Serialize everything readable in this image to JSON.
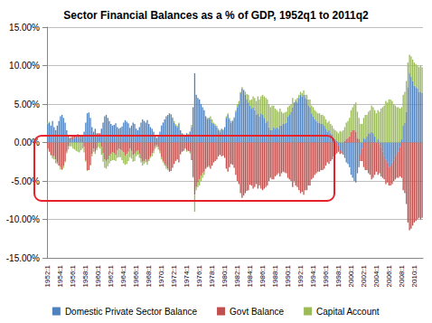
{
  "chart_data": {
    "type": "bar",
    "title": "Sector Financial Balances as a % of GDP, 1952q1 to 2011q2",
    "stacked": true,
    "grid": true,
    "legend": "bottom",
    "categories": [
      "1952:1",
      null,
      null,
      null,
      null,
      null,
      null,
      null,
      "1954:1",
      null,
      null,
      null,
      null,
      null,
      null,
      null,
      "1956:1",
      null,
      null,
      null,
      null,
      null,
      null,
      null,
      "1958:1",
      null,
      null,
      null,
      null,
      null,
      null,
      null,
      "1960:1",
      null,
      null,
      null,
      null,
      null,
      null,
      null,
      "1962:1",
      null,
      null,
      null,
      null,
      null,
      null,
      null,
      "1964:1",
      null,
      null,
      null,
      null,
      null,
      null,
      null,
      "1966:1",
      null,
      null,
      null,
      null,
      null,
      null,
      null,
      "1968:1",
      null,
      null,
      null,
      null,
      null,
      null,
      null,
      "1970:1",
      null,
      null,
      null,
      null,
      null,
      null,
      null,
      "1972:1",
      null,
      null,
      null,
      null,
      null,
      null,
      null,
      "1974:1",
      null,
      null,
      null,
      null,
      null,
      null,
      null,
      "1976:1",
      null,
      null,
      null,
      null,
      null,
      null,
      null,
      "1978:1",
      null,
      null,
      null,
      null,
      null,
      null,
      null,
      "1980:1",
      null,
      null,
      null,
      null,
      null,
      null,
      null,
      "1982:1",
      null,
      null,
      null,
      null,
      null,
      null,
      null,
      "1984:1",
      null,
      null,
      null,
      null,
      null,
      null,
      null,
      "1986:1",
      null,
      null,
      null,
      null,
      null,
      null,
      null,
      "1988:1",
      null,
      null,
      null,
      null,
      null,
      null,
      null,
      "1990:1",
      null,
      null,
      null,
      null,
      null,
      null,
      null,
      "1992:1",
      null,
      null,
      null,
      null,
      null,
      null,
      null,
      "1994:1",
      null,
      null,
      null,
      null,
      null,
      null,
      null,
      "1996:1",
      null,
      null,
      null,
      null,
      null,
      null,
      null,
      "1998:1",
      null,
      null,
      null,
      null,
      null,
      null,
      null,
      "2000:1",
      null,
      null,
      null,
      null,
      null,
      null,
      null,
      "2002:1",
      null,
      null,
      null,
      null,
      null,
      null,
      null,
      "2004:1",
      null,
      null,
      null,
      null,
      null,
      null,
      null,
      "2006:1",
      null,
      null,
      null,
      null,
      null,
      null,
      null,
      "2008:1",
      null,
      null,
      null,
      null,
      null,
      null,
      null,
      "2010:1",
      null,
      null,
      null,
      null,
      null
    ],
    "series": [
      {
        "name": "Domestic Private Sector Balance",
        "color": "#4F81BD",
        "values": [
          2.4,
          2.6,
          2.2,
          2.8,
          2.0,
          1.6,
          2.2,
          2.8,
          3.4,
          3.6,
          3.2,
          2.6,
          1.6,
          1.0,
          0.6,
          0.4,
          0.4,
          0.6,
          0.8,
          0.6,
          0.8,
          0.6,
          0.9,
          1.4,
          2.6,
          3.8,
          3.9,
          3.2,
          2.0,
          1.4,
          1.8,
          1.2,
          0.8,
          1.0,
          1.8,
          2.6,
          3.4,
          3.6,
          3.2,
          2.8,
          2.4,
          2.2,
          2.3,
          2.5,
          2.0,
          1.8,
          1.9,
          2.1,
          2.6,
          2.9,
          2.7,
          2.5,
          1.9,
          2.2,
          2.6,
          2.4,
          1.8,
          1.6,
          2.0,
          2.6,
          3.0,
          2.8,
          2.6,
          2.9,
          2.4,
          2.0,
          1.8,
          1.4,
          0.8,
          0.6,
          0.9,
          1.4,
          2.2,
          2.6,
          3.0,
          3.4,
          3.6,
          3.8,
          3.6,
          3.2,
          2.6,
          2.2,
          2.0,
          2.4,
          1.6,
          1.2,
          1.0,
          0.8,
          1.2,
          1.0,
          1.4,
          2.0,
          4.6,
          9.0,
          6.2,
          5.8,
          5.6,
          5.0,
          4.6,
          4.2,
          3.4,
          3.0,
          3.2,
          3.0,
          2.6,
          2.4,
          2.2,
          2.0,
          1.6,
          1.4,
          1.8,
          1.6,
          2.0,
          3.2,
          3.6,
          3.0,
          2.6,
          2.8,
          3.2,
          4.0,
          4.6,
          5.0,
          6.4,
          7.0,
          6.8,
          6.2,
          5.6,
          5.2,
          4.8,
          4.4,
          4.6,
          4.2,
          3.6,
          3.8,
          3.4,
          3.8,
          3.6,
          3.2,
          2.6,
          2.8,
          2.0,
          1.6,
          1.6,
          2.0,
          1.8,
          2.0,
          1.8,
          2.2,
          2.2,
          2.4,
          2.4,
          2.6,
          3.4,
          3.6,
          4.0,
          4.6,
          5.2,
          5.4,
          5.2,
          5.8,
          6.2,
          6.0,
          6.2,
          5.8,
          5.6,
          4.8,
          4.6,
          3.8,
          3.4,
          3.0,
          2.8,
          2.6,
          2.6,
          2.4,
          2.4,
          2.2,
          1.8,
          1.4,
          1.6,
          1.2,
          1.0,
          0.6,
          0.4,
          0.2,
          -0.4,
          -1.0,
          -1.2,
          -1.6,
          -2.0,
          -2.6,
          -2.8,
          -3.2,
          -4.2,
          -4.6,
          -5.0,
          -5.2,
          -4.0,
          -3.2,
          -1.6,
          -0.8,
          0.6,
          0.4,
          0.8,
          1.2,
          1.2,
          1.4,
          1.2,
          0.8,
          0.0,
          0.4,
          -0.2,
          -0.6,
          -1.2,
          -1.8,
          -2.2,
          -2.6,
          -3.2,
          -3.0,
          -2.6,
          -2.2,
          -1.8,
          -1.6,
          -1.2,
          -0.6,
          0.4,
          2.2,
          2.6,
          4.0,
          7.2,
          9.0,
          8.6,
          8.0,
          7.4,
          7.2,
          7.0,
          6.6,
          6.6,
          6.4
        ]
      },
      {
        "name": "Govt Balance",
        "color": "#C0504D",
        "values": [
          -0.8,
          -1.2,
          -1.6,
          -1.8,
          -1.8,
          -2.2,
          -2.6,
          -3.0,
          -3.2,
          -3.5,
          -3.0,
          -2.4,
          -1.2,
          -0.5,
          0.0,
          0.3,
          0.6,
          0.4,
          0.2,
          0.5,
          0.2,
          0.3,
          0.0,
          -0.6,
          -2.3,
          -3.6,
          -3.6,
          -2.9,
          -1.5,
          -0.8,
          -1.2,
          -0.8,
          0.4,
          0.2,
          -0.6,
          -1.4,
          -2.2,
          -2.4,
          -2.2,
          -1.7,
          -1.5,
          -1.3,
          -1.4,
          -1.6,
          -1.0,
          -0.8,
          -0.9,
          -1.1,
          -1.3,
          -1.7,
          -1.5,
          -1.2,
          -0.8,
          -1.1,
          -1.6,
          -1.5,
          -1.2,
          -1.0,
          -1.5,
          -2.1,
          -2.5,
          -2.4,
          -2.2,
          -2.5,
          -2.2,
          -1.8,
          -1.4,
          -1.1,
          -0.5,
          -0.3,
          -0.6,
          -1.1,
          -1.9,
          -2.4,
          -2.8,
          -3.1,
          -3.4,
          -3.8,
          -3.7,
          -3.3,
          -2.8,
          -2.4,
          -2.2,
          -2.6,
          -1.5,
          -1.2,
          -1.1,
          -0.8,
          -1.0,
          -1.1,
          -1.2,
          -2.3,
          -4.5,
          -6.8,
          -5.8,
          -5.2,
          -4.8,
          -4.3,
          -4.0,
          -3.8,
          -3.4,
          -3.2,
          -3.0,
          -3.4,
          -3.0,
          -2.6,
          -2.4,
          -2.2,
          -1.8,
          -1.6,
          -1.8,
          -1.7,
          -2.0,
          -3.4,
          -3.8,
          -3.2,
          -2.8,
          -2.9,
          -3.3,
          -4.2,
          -5.0,
          -5.4,
          -6.6,
          -7.2,
          -6.9,
          -6.6,
          -6.3,
          -6.2,
          -5.5,
          -5.6,
          -6.0,
          -5.8,
          -5.4,
          -6.0,
          -5.6,
          -6.0,
          -6.2,
          -6.0,
          -5.8,
          -5.6,
          -5.0,
          -4.6,
          -4.8,
          -4.8,
          -4.4,
          -4.2,
          -4.0,
          -4.4,
          -4.0,
          -3.8,
          -3.9,
          -4.0,
          -4.6,
          -4.8,
          -5.0,
          -5.8,
          -5.0,
          -5.6,
          -5.8,
          -6.2,
          -6.6,
          -6.4,
          -6.8,
          -6.2,
          -6.2,
          -5.6,
          -5.6,
          -4.8,
          -4.6,
          -4.2,
          -4.0,
          -3.8,
          -3.8,
          -3.6,
          -3.6,
          -3.4,
          -3.0,
          -2.6,
          -2.8,
          -2.4,
          -2.2,
          -1.8,
          -1.6,
          -1.4,
          -0.8,
          -0.5,
          -0.2,
          0.0,
          0.2,
          0.4,
          0.6,
          0.8,
          1.4,
          1.6,
          1.6,
          1.4,
          0.6,
          0.4,
          -0.8,
          -1.6,
          -3.2,
          -3.6,
          -3.6,
          -4.0,
          -4.2,
          -4.8,
          -4.6,
          -4.2,
          -3.8,
          -4.2,
          -3.8,
          -3.8,
          -3.4,
          -3.0,
          -3.2,
          -2.6,
          -2.4,
          -2.6,
          -2.8,
          -2.8,
          -3.0,
          -3.0,
          -3.4,
          -3.8,
          -4.6,
          -6.2,
          -6.6,
          -8.0,
          -10.4,
          -11.4,
          -11.2,
          -10.8,
          -10.4,
          -10.2,
          -10.0,
          -9.8,
          -10.0,
          -9.8
        ]
      },
      {
        "name": "Capital Account",
        "color": "#9BBB59",
        "values": [
          0.2,
          0.1,
          -0.1,
          -0.3,
          -0.4,
          -0.5,
          -0.2,
          0.0,
          -0.3,
          -0.1,
          -0.3,
          -0.2,
          -0.2,
          -0.4,
          -0.5,
          -0.5,
          -0.8,
          -0.9,
          -1.1,
          -1.2,
          -1.3,
          -1.0,
          -0.8,
          -0.7,
          -0.2,
          -0.1,
          0.0,
          -0.1,
          -0.3,
          -0.4,
          -0.3,
          -0.2,
          -0.6,
          -0.8,
          -1.0,
          -1.1,
          -1.1,
          -1.0,
          -0.9,
          -1.0,
          -0.9,
          -1.0,
          -0.9,
          -0.8,
          -1.0,
          -1.1,
          -1.0,
          -1.2,
          -1.4,
          -1.2,
          -1.3,
          -1.2,
          -1.1,
          -1.0,
          -0.9,
          -0.9,
          -0.6,
          -0.6,
          -0.5,
          -0.5,
          -0.5,
          -0.4,
          -0.4,
          -0.4,
          -0.2,
          -0.2,
          -0.4,
          -0.3,
          -0.3,
          -0.3,
          -0.3,
          -0.3,
          -0.3,
          -0.2,
          -0.2,
          -0.3,
          -0.2,
          0.0,
          0.1,
          0.1,
          0.2,
          0.2,
          0.2,
          0.2,
          -0.1,
          0.0,
          0.1,
          0.0,
          -0.2,
          0.1,
          -0.2,
          0.3,
          -0.1,
          -2.2,
          -0.4,
          -0.6,
          -0.8,
          -0.7,
          -0.6,
          -0.4,
          0.0,
          0.2,
          -0.2,
          0.4,
          0.4,
          0.2,
          0.2,
          0.2,
          0.2,
          0.2,
          0.0,
          0.1,
          0.0,
          0.2,
          0.2,
          0.2,
          0.2,
          0.1,
          0.1,
          0.2,
          0.4,
          0.4,
          0.2,
          0.2,
          0.1,
          0.4,
          0.7,
          1.0,
          0.7,
          1.2,
          1.4,
          1.6,
          1.8,
          2.2,
          2.2,
          2.2,
          2.6,
          2.8,
          3.2,
          2.8,
          3.0,
          3.0,
          3.2,
          2.8,
          2.6,
          2.2,
          2.2,
          2.2,
          1.8,
          1.4,
          1.5,
          1.4,
          1.2,
          1.2,
          1.0,
          1.2,
          -0.2,
          0.2,
          0.6,
          0.4,
          0.4,
          0.4,
          0.6,
          0.4,
          0.6,
          0.8,
          1.0,
          1.0,
          1.2,
          1.2,
          1.2,
          1.2,
          1.2,
          1.2,
          1.2,
          1.2,
          1.2,
          1.2,
          1.2,
          1.2,
          1.2,
          1.2,
          1.2,
          1.2,
          1.2,
          1.5,
          1.4,
          1.6,
          1.8,
          2.2,
          2.2,
          2.4,
          2.8,
          3.0,
          3.4,
          3.8,
          3.4,
          2.8,
          2.4,
          2.4,
          2.6,
          3.2,
          2.8,
          2.8,
          3.0,
          3.4,
          3.4,
          3.4,
          3.8,
          3.8,
          4.0,
          4.4,
          4.6,
          4.8,
          5.4,
          5.2,
          5.6,
          5.6,
          5.4,
          5.0,
          4.8,
          4.6,
          4.6,
          4.4,
          4.2,
          4.0,
          4.0,
          4.0,
          3.2,
          2.4,
          2.6,
          2.8,
          3.0,
          3.0,
          3.0,
          3.2,
          3.4,
          3.4
        ]
      }
    ],
    "ylim": [
      -15,
      15
    ],
    "yticks": [
      {
        "value": -15,
        "label": "-15.00%"
      },
      {
        "value": -10,
        "label": "-10.00%"
      },
      {
        "value": -5,
        "label": "-5.00%"
      },
      {
        "value": 0,
        "label": "0.00%"
      },
      {
        "value": 5,
        "label": "5.00%"
      },
      {
        "value": 10,
        "label": "10.00%"
      },
      {
        "value": 15,
        "label": "15.00%"
      }
    ]
  }
}
